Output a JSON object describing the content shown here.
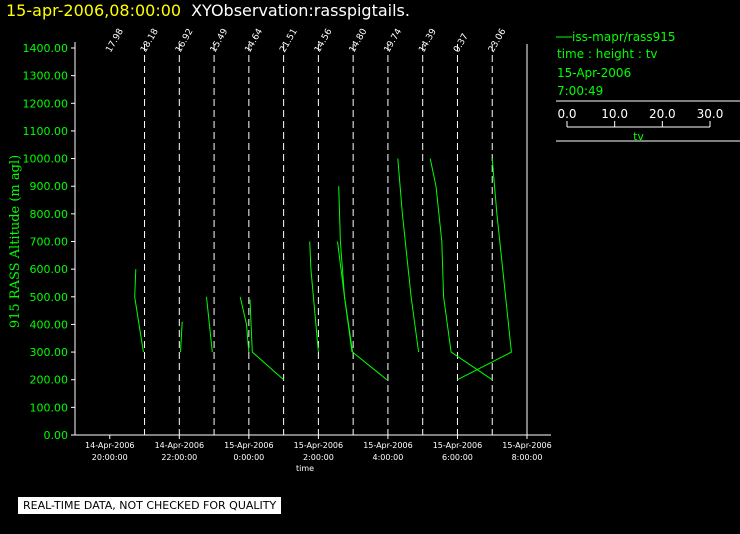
{
  "header": {
    "date_label": "15-apr-2006,08:00:00",
    "title": "XYObservation:rasspigtails."
  },
  "legend": {
    "series_label": "iss-mapr/rass915",
    "axes_label": "time : height : tv",
    "date": "15-Apr-2006",
    "time": "7:00:49",
    "scale_ticks": [
      "0.0",
      "10.0",
      "20.0",
      "30.0"
    ],
    "scale_label": "tv"
  },
  "note": "REAL-TIME DATA, NOT CHECKED FOR QUALITY",
  "colors": {
    "series": "#00ff00",
    "axes": "#ffffff",
    "title_date": "#ffff00",
    "background": "#000000"
  },
  "chart_data": {
    "type": "line",
    "title": "XYObservation:rasspigtails.",
    "xlabel": "time",
    "ylabel": "915 RASS Altitude (m agl)",
    "ylim": [
      0,
      1400
    ],
    "xlim": [
      "2006-04-14 19:00",
      "2006-04-15 08:00"
    ],
    "y_ticks": [
      "0.00",
      "100.00",
      "200.00",
      "300.00",
      "400.00",
      "500.00",
      "600.00",
      "700.00",
      "800.00",
      "900.00",
      "1000.00",
      "1100.00",
      "1200.00",
      "1300.00",
      "1400.00"
    ],
    "x_ticks": [
      {
        "time": "2006-04-14 20:00",
        "date": "14-Apr-2006",
        "clock": "20:00:00"
      },
      {
        "time": "2006-04-14 22:00",
        "date": "14-Apr-2006",
        "clock": "22:00:00"
      },
      {
        "time": "2006-04-15 00:00",
        "date": "15-Apr-2006",
        "clock": "0:00:00"
      },
      {
        "time": "2006-04-15 02:00",
        "date": "15-Apr-2006",
        "clock": "2:00:00"
      },
      {
        "time": "2006-04-15 04:00",
        "date": "15-Apr-2006",
        "clock": "4:00:00"
      },
      {
        "time": "2006-04-15 06:00",
        "date": "15-Apr-2006",
        "clock": "6:00:00"
      },
      {
        "time": "2006-04-15 08:00",
        "date": "15-Apr-2006",
        "clock": "8:00:00"
      }
    ],
    "profiles": [
      {
        "time": "2006-04-14 21:00",
        "label": "17.98"
      },
      {
        "time": "2006-04-14 22:00",
        "label": "18.18"
      },
      {
        "time": "2006-04-14 23:00",
        "label": "16.92"
      },
      {
        "time": "2006-04-15 00:00",
        "label": "15.49"
      },
      {
        "time": "2006-04-15 01:00",
        "label": "14.64"
      },
      {
        "time": "2006-04-15 02:00",
        "label": "21.51"
      },
      {
        "time": "2006-04-15 03:00",
        "label": "14.56"
      },
      {
        "time": "2006-04-15 04:00",
        "label": "14.80"
      },
      {
        "time": "2006-04-15 05:00",
        "label": "19.74"
      },
      {
        "time": "2006-04-15 06:00",
        "label": "14.39"
      },
      {
        "time": "2006-04-15 07:00",
        "label": "0.37"
      },
      {
        "time": "2006-04-15 08:00",
        "label": "23.06"
      }
    ],
    "series": [
      {
        "points": [
          [
            "2006-04-14 20:45",
            600
          ],
          [
            "2006-04-14 20:43",
            500
          ],
          [
            "2006-04-14 20:52",
            380
          ],
          [
            "2006-04-14 20:58",
            300
          ]
        ]
      },
      {
        "points": [
          [
            "2006-04-14 22:05",
            410
          ],
          [
            "2006-04-14 22:02",
            300
          ]
        ]
      },
      {
        "points": [
          [
            "2006-04-14 22:47",
            500
          ],
          [
            "2006-04-14 22:57",
            300
          ]
        ]
      },
      {
        "points": [
          [
            "2006-04-14 23:45",
            500
          ],
          [
            "2006-04-14 23:56",
            400
          ],
          [
            "2006-04-15 00:00",
            300
          ]
        ]
      },
      {
        "points": [
          [
            "2006-04-15 00:02",
            490
          ],
          [
            "2006-04-15 00:06",
            300
          ],
          [
            "2006-04-15 01:00",
            200
          ]
        ]
      },
      {
        "points": [
          [
            "2006-04-15 01:45",
            700
          ],
          [
            "2006-04-15 01:47",
            600
          ],
          [
            "2006-04-15 02:00",
            300
          ]
        ]
      },
      {
        "points": [
          [
            "2006-04-15 02:35",
            900
          ],
          [
            "2006-04-15 02:38",
            700
          ],
          [
            "2006-04-15 02:45",
            500
          ],
          [
            "2006-04-15 02:58",
            300
          ]
        ]
      },
      {
        "points": [
          [
            "2006-04-15 02:33",
            700
          ],
          [
            "2006-04-15 02:45",
            500
          ],
          [
            "2006-04-15 02:59",
            300
          ],
          [
            "2006-04-15 03:58",
            200
          ]
        ]
      },
      {
        "points": [
          [
            "2006-04-15 04:17",
            1000
          ],
          [
            "2006-04-15 04:25",
            800
          ],
          [
            "2006-04-15 04:40",
            500
          ],
          [
            "2006-04-15 04:53",
            300
          ]
        ]
      },
      {
        "points": [
          [
            "2006-04-15 05:13",
            1000
          ],
          [
            "2006-04-15 05:23",
            900
          ],
          [
            "2006-04-15 05:33",
            700
          ],
          [
            "2006-04-15 05:36",
            500
          ],
          [
            "2006-04-15 05:49",
            300
          ],
          [
            "2006-04-15 07:00",
            200
          ]
        ]
      },
      {
        "points": [
          [
            "2006-04-15 07:00",
            1000
          ],
          [
            "2006-04-15 07:08",
            800
          ],
          [
            "2006-04-15 07:18",
            600
          ],
          [
            "2006-04-15 07:28",
            400
          ],
          [
            "2006-04-15 07:33",
            300
          ],
          [
            "2006-04-15 06:00",
            200
          ]
        ]
      }
    ]
  }
}
